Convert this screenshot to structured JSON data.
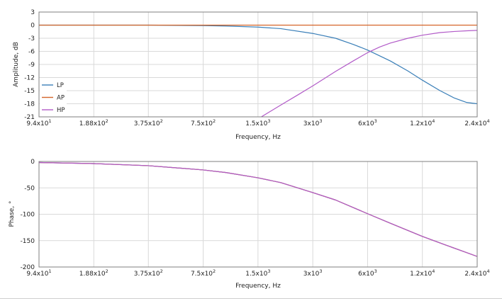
{
  "chart_data": [
    {
      "type": "line",
      "x_scale": "log",
      "xlabel": "Frequency, Hz",
      "ylabel": "Amplitude, dB",
      "xlim": [
        94,
        24000
      ],
      "ylim": [
        -21,
        3
      ],
      "grid": true,
      "legend_position": "bottom-left",
      "x_ticks": [
        {
          "value": 94,
          "base": "9.4x10",
          "exp": "1"
        },
        {
          "value": 188,
          "base": "1.88x10",
          "exp": "2"
        },
        {
          "value": 375,
          "base": "3.75x10",
          "exp": "2"
        },
        {
          "value": 750,
          "base": "7.5x10",
          "exp": "2"
        },
        {
          "value": 1500,
          "base": "1.5x10",
          "exp": "3"
        },
        {
          "value": 3000,
          "base": "3x10",
          "exp": "3"
        },
        {
          "value": 6000,
          "base": "6x10",
          "exp": "3"
        },
        {
          "value": 12000,
          "base": "1.2x10",
          "exp": "4"
        },
        {
          "value": 24000,
          "base": "2.4x10",
          "exp": "4"
        }
      ],
      "y_ticks": [
        3,
        0,
        -3,
        -6,
        -9,
        -12,
        -15,
        -18,
        -21
      ],
      "series": [
        {
          "name": "LP",
          "color": "#3a7fb8",
          "x": [
            94,
            188,
            375,
            750,
            1000,
            1500,
            2000,
            3000,
            4000,
            5000,
            6000,
            8000,
            10000,
            12000,
            15000,
            18000,
            21000,
            24000
          ],
          "y": [
            0,
            0,
            0,
            -0.1,
            -0.2,
            -0.45,
            -0.8,
            -1.9,
            -3.0,
            -4.4,
            -5.7,
            -8.2,
            -10.5,
            -12.6,
            -15.0,
            -16.7,
            -17.7,
            -18.0
          ]
        },
        {
          "name": "AP",
          "color": "#d4652a",
          "x": [
            94,
            24000
          ],
          "y": [
            0,
            0
          ]
        },
        {
          "name": "HP",
          "color": "#b25bc8",
          "x": [
            1550,
            2000,
            2500,
            3000,
            4000,
            5000,
            6000,
            7000,
            8000,
            10000,
            12000,
            15000,
            18000,
            21000,
            24000
          ],
          "y": [
            -21.1,
            -18.3,
            -15.9,
            -13.9,
            -10.6,
            -8.2,
            -6.3,
            -5.0,
            -4.1,
            -3.0,
            -2.3,
            -1.7,
            -1.45,
            -1.3,
            -1.2
          ]
        }
      ]
    },
    {
      "type": "line",
      "x_scale": "log",
      "xlabel": "Frequency, Hz",
      "ylabel": "Phase, °",
      "xlim": [
        94,
        24000
      ],
      "ylim": [
        -200,
        0
      ],
      "grid": true,
      "x_ticks": [
        {
          "value": 94,
          "base": "9.4x10",
          "exp": "1"
        },
        {
          "value": 188,
          "base": "1.88x10",
          "exp": "2"
        },
        {
          "value": 375,
          "base": "3.75x10",
          "exp": "2"
        },
        {
          "value": 750,
          "base": "7.5x10",
          "exp": "2"
        },
        {
          "value": 1500,
          "base": "1.5x10",
          "exp": "3"
        },
        {
          "value": 3000,
          "base": "3x10",
          "exp": "3"
        },
        {
          "value": 6000,
          "base": "6x10",
          "exp": "3"
        },
        {
          "value": 12000,
          "base": "1.2x10",
          "exp": "4"
        },
        {
          "value": 24000,
          "base": "2.4x10",
          "exp": "4"
        }
      ],
      "y_ticks": [
        0,
        -50,
        -100,
        -150,
        -200
      ],
      "series": [
        {
          "color": "#3a7fb8",
          "x": [
            94,
            188,
            375,
            750,
            1000,
            1500,
            2000,
            3000,
            4000,
            6000,
            8000,
            12000,
            16000,
            20000,
            24000
          ],
          "y": [
            -2,
            -4,
            -8,
            -16,
            -21,
            -31,
            -40,
            -59,
            -73,
            -99,
            -117,
            -142,
            -158,
            -170,
            -180
          ]
        },
        {
          "color": "#d4652a",
          "x": [
            94,
            188,
            375,
            750,
            1000,
            1500,
            2000,
            3000,
            4000,
            6000,
            8000,
            12000,
            16000,
            20000,
            24000
          ],
          "y": [
            -2,
            -4,
            -8,
            -16,
            -21,
            -31,
            -40,
            -59,
            -73,
            -99,
            -117,
            -142,
            -158,
            -170,
            -180
          ]
        },
        {
          "color": "#b25bc8",
          "x": [
            94,
            188,
            375,
            750,
            1000,
            1500,
            2000,
            3000,
            4000,
            6000,
            8000,
            12000,
            16000,
            20000,
            24000
          ],
          "y": [
            -2,
            -4,
            -8,
            -16,
            -21,
            -31,
            -40,
            -59,
            -73,
            -99,
            -117,
            -142,
            -158,
            -170,
            -180
          ]
        }
      ]
    }
  ]
}
